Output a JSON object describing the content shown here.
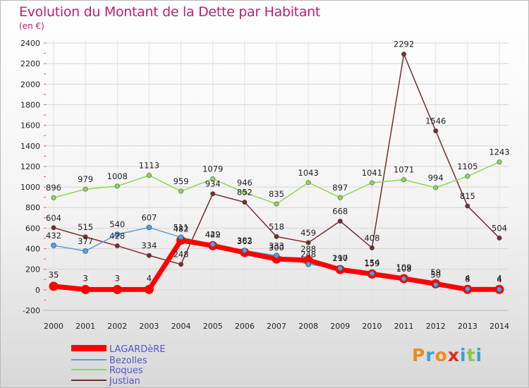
{
  "chart_data": {
    "type": "line",
    "title": "Evolution du Montant de la Dette par Habitant",
    "unit": "(en €)",
    "x": [
      "2000",
      "2001",
      "2002",
      "2003",
      "2004",
      "2005",
      "2006",
      "2007",
      "2008",
      "2009",
      "2010",
      "2011",
      "2012",
      "2013",
      "2014"
    ],
    "ylim": [
      -200,
      2400
    ],
    "yticks": [
      -200,
      0,
      200,
      400,
      600,
      800,
      1000,
      1200,
      1400,
      1600,
      1800,
      2000,
      2200,
      2400
    ],
    "grid": true,
    "legend_position": "bottom-left",
    "series": [
      {
        "name": "LAGARDèRE",
        "color": "#ff0000",
        "values": [
          35,
          3,
          3,
          4,
          482,
          429,
          363,
          300,
          288,
          197,
          154,
          109,
          59,
          4,
          4
        ]
      },
      {
        "name": "Bezolles",
        "color": "#5a9fd4",
        "values": [
          432,
          377,
          540,
          607,
          511,
          442,
          382,
          333,
          248,
          210,
          159,
          108,
          50,
          8,
          4
        ]
      },
      {
        "name": "Roques",
        "color": "#8fd64f",
        "values": [
          896,
          979,
          1008,
          1113,
          959,
          1079,
          946,
          835,
          1043,
          897,
          1041,
          1071,
          994,
          1105,
          1243
        ]
      },
      {
        "name": "Justian",
        "color": "#7a2a2a",
        "values": [
          604,
          515,
          428,
          334,
          248,
          934,
          852,
          518,
          459,
          668,
          408,
          2292,
          1546,
          815,
          504
        ]
      }
    ]
  }
}
